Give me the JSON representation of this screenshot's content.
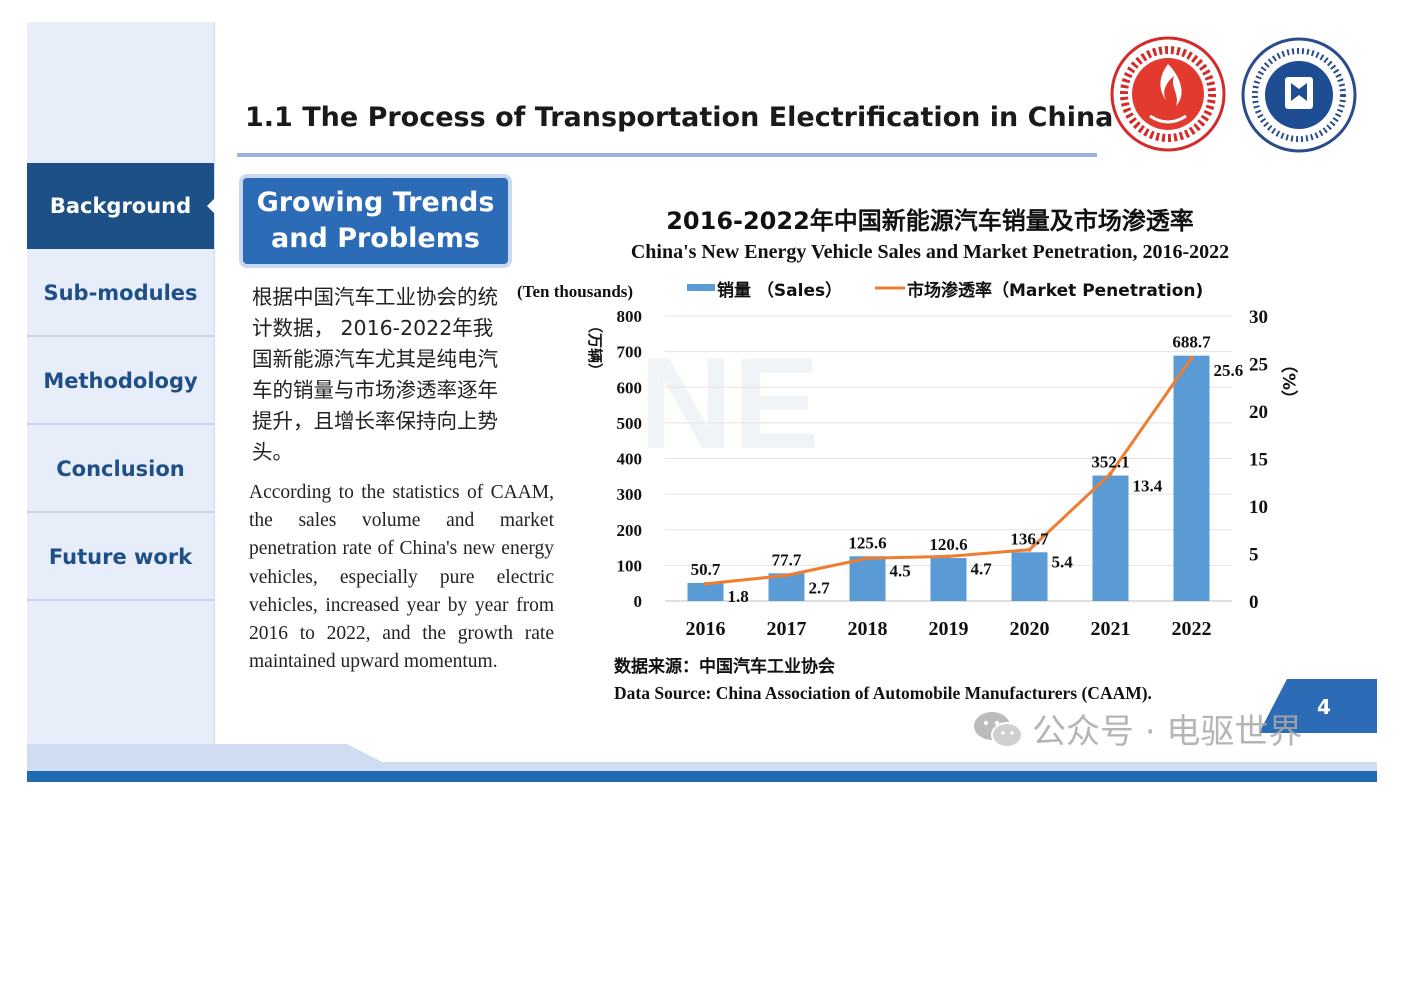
{
  "header": {
    "title": "1.1 The Process of Transportation Electrification in China"
  },
  "sidebar": {
    "items": [
      {
        "label": "Background",
        "active": true
      },
      {
        "label": "Sub-modules",
        "active": false
      },
      {
        "label": "Methodology",
        "active": false
      },
      {
        "label": "Conclusion",
        "active": false
      },
      {
        "label": "Future work",
        "active": false
      }
    ]
  },
  "section_box": {
    "line1": "Growing Trends",
    "line2": "and Problems"
  },
  "body_text": {
    "chinese": "根据中国汽车工业协会的统计数据， 2016-2022年我国新能源汽车尤其是纯电汽车的销量与市场渗透率逐年提升，且增长率保持向上势头。",
    "english": "According to the statistics of CAAM, the sales volume and market penetration rate of China's new energy vehicles, especially pure electric vehicles, increased year by year from 2016 to 2022, and the growth rate maintained upward momentum."
  },
  "chart_data": {
    "type": "bar",
    "title": "2016-2022年中国新能源汽车销量及市场渗透率",
    "subtitle": "China's New Energy Vehicle Sales and Market Penetration, 2016-2022",
    "categories": [
      "2016",
      "2017",
      "2018",
      "2019",
      "2020",
      "2021",
      "2022"
    ],
    "series": [
      {
        "name": "销量 （Sales）",
        "type": "bar",
        "axis": "left",
        "color": "#5b9bd5",
        "values": [
          50.7,
          77.7,
          125.6,
          120.6,
          136.7,
          352.1,
          688.7
        ]
      },
      {
        "name": "市场渗透率（Market Penetration)",
        "type": "line",
        "axis": "right",
        "color": "#ed7d31",
        "values": [
          1.8,
          2.7,
          4.5,
          4.7,
          5.4,
          13.4,
          25.6
        ]
      }
    ],
    "left_axis": {
      "unit_en": "(Ten thousands)",
      "unit_cn": "（万辆）",
      "ylim": [
        0,
        800
      ],
      "ticks": [
        0,
        100,
        200,
        300,
        400,
        500,
        600,
        700,
        800
      ]
    },
    "right_axis": {
      "unit": "（%）",
      "ylim": [
        0,
        30
      ],
      "ticks": [
        0,
        5,
        10,
        15,
        20,
        25,
        30
      ]
    },
    "grid": true,
    "legend_position": "top",
    "source_cn": "数据来源：中国汽车工业协会",
    "source_en": "Data Source: China Association of Automobile Manufacturers (CAAM)."
  },
  "footer": {
    "page_number": "4",
    "watermark": "公众号 · 电驱世界"
  },
  "colors": {
    "primary": "#1e5088",
    "sidebar_bg": "#e8eef9",
    "accent_box": "#2c6bb5",
    "bar": "#5b9bd5",
    "line": "#ed7d31"
  }
}
